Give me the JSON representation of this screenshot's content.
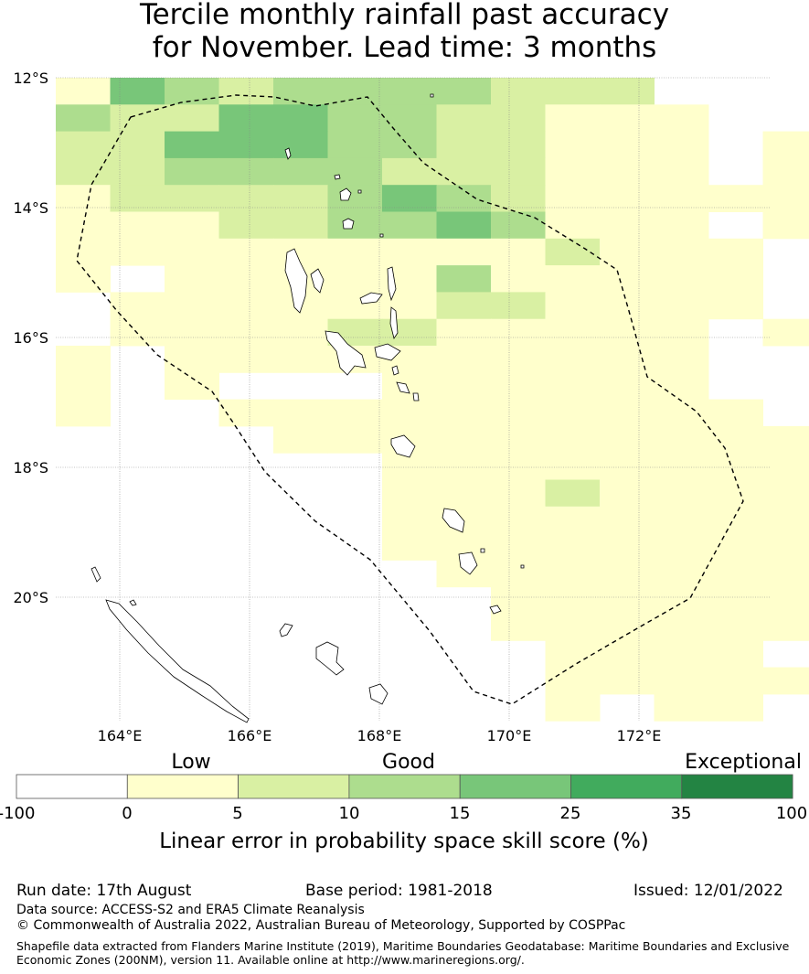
{
  "title": {
    "line1": "Tercile monthly rainfall past accuracy",
    "line2": "for November. Lead time: 3 months"
  },
  "map": {
    "lat_labels": [
      "12°S",
      "14°S",
      "16°S",
      "18°S",
      "20°S"
    ],
    "lon_labels": [
      "164°E",
      "166°E",
      "168°E",
      "170°E",
      "172°E"
    ]
  },
  "colorbar": {
    "category_labels": [
      "Low",
      "Good",
      "Exceptional"
    ],
    "tick_labels": [
      "-100",
      "0",
      "5",
      "10",
      "15",
      "25",
      "35",
      "100"
    ],
    "colors": [
      "#ffffff",
      "#ffffcc",
      "#d9f0a3",
      "#addd8e",
      "#78c679",
      "#41ab5d",
      "#238443"
    ],
    "label": "Linear error in probability space skill score (%)"
  },
  "footer": {
    "run_date": "Run date: 17th August",
    "base_period": "Base period: 1981-2018",
    "issued": "Issued: 12/01/2022",
    "data_source": "Data source: ACCESS-S2 and ERA5 Climate Reanalysis",
    "copyright": "© Commonwealth of Australia 2022, Australian Bureau of Meteorology, Supported by COSPPac",
    "shapefile_line1": "Shapefile data extracted from Flanders Marine Institute (2019), Maritime Boundaries Geodatabase: Maritime Boundaries and Exclusive",
    "shapefile_line2": "Economic Zones (200NM), version 11. Available online at http://www.marineregions.org/."
  }
}
